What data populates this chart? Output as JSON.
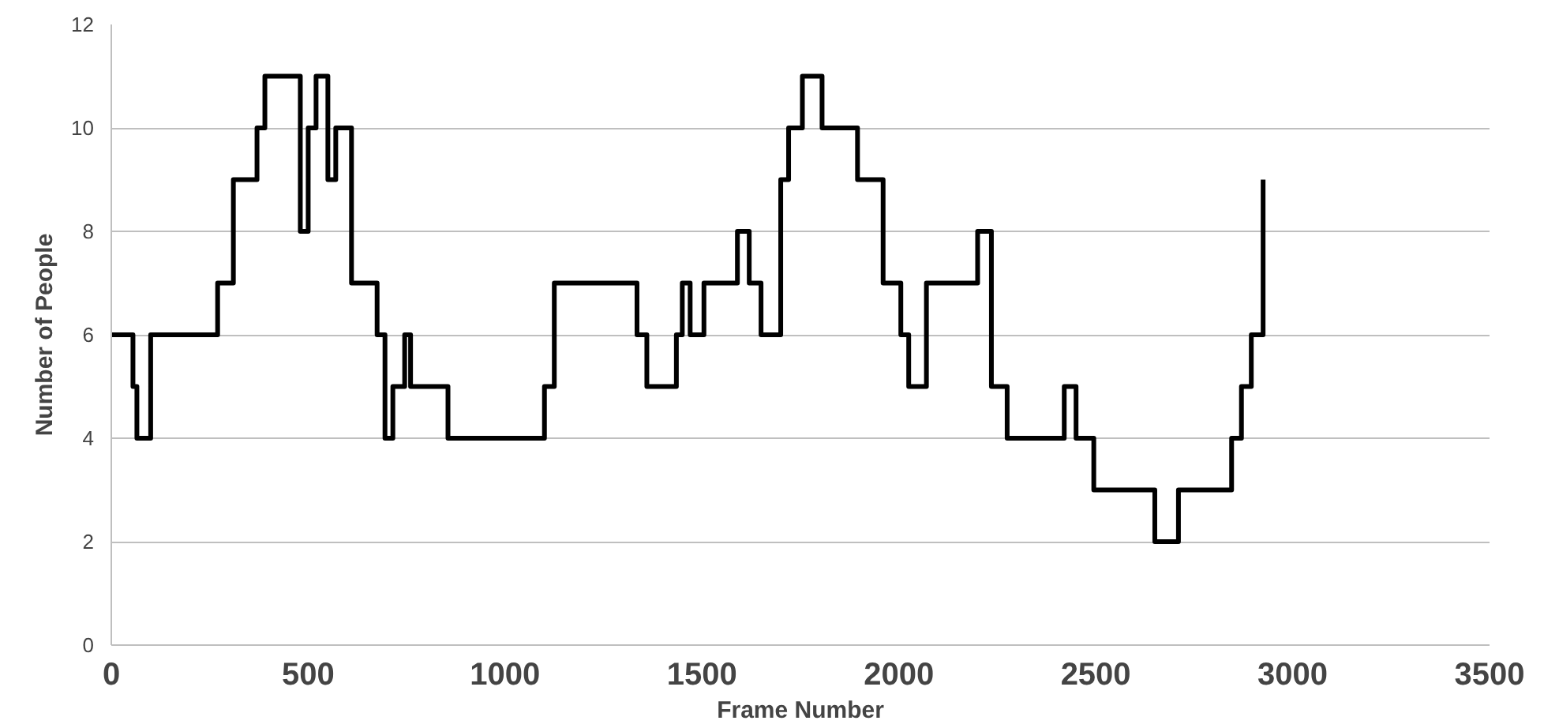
{
  "chart_data": {
    "type": "step",
    "xlabel": "Frame Number",
    "ylabel": "Number of People",
    "x": [
      0,
      55,
      65,
      100,
      270,
      310,
      370,
      390,
      480,
      500,
      520,
      550,
      570,
      610,
      675,
      695,
      715,
      745,
      760,
      855,
      1100,
      1125,
      1335,
      1360,
      1435,
      1450,
      1470,
      1505,
      1590,
      1620,
      1650,
      1700,
      1720,
      1755,
      1805,
      1895,
      1960,
      2005,
      2025,
      2070,
      2200,
      2235,
      2275,
      2420,
      2450,
      2495,
      2650,
      2710,
      2845,
      2870,
      2895,
      2925
    ],
    "series": [
      {
        "color": "#000000",
        "values": [
          6,
          5,
          4,
          6,
          7,
          9,
          10,
          11,
          8,
          10,
          11,
          9,
          10,
          7,
          6,
          4,
          5,
          6,
          5,
          4,
          5,
          7,
          6,
          5,
          6,
          7,
          6,
          7,
          8,
          7,
          6,
          9,
          10,
          11,
          10,
          9,
          7,
          6,
          5,
          7,
          8,
          5,
          4,
          5,
          4,
          3,
          2,
          3,
          4,
          5,
          6,
          9
        ]
      }
    ],
    "xlim": [
      0,
      3500
    ],
    "xticks": [
      0,
      500,
      1000,
      1500,
      2000,
      2500,
      3000,
      3500
    ],
    "ylim": [
      0,
      12
    ],
    "yticks": [
      0,
      2,
      4,
      6,
      8,
      10,
      12
    ],
    "grid": "y",
    "marker": "none",
    "line_style": "solid"
  }
}
